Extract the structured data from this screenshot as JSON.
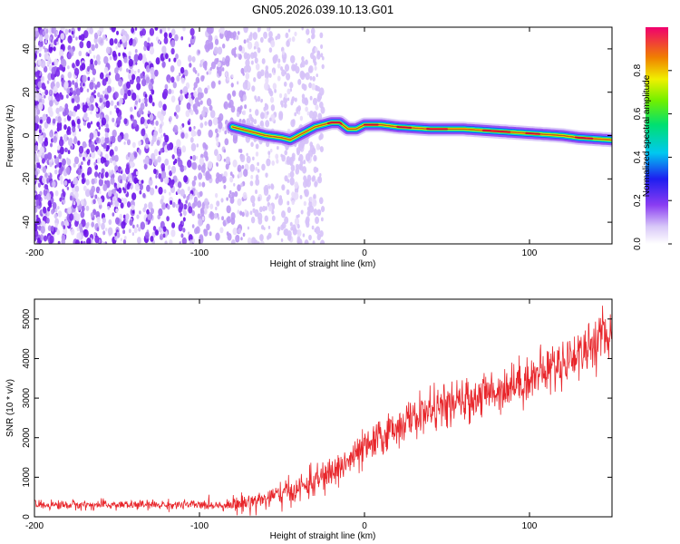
{
  "title": "GN05.2026.039.10.13.G01",
  "chart_data": [
    {
      "type": "heatmap",
      "xlabel": "Height of straight line (km)",
      "ylabel": "Frequency (Hz)",
      "xlim": [
        -200,
        150
      ],
      "ylim": [
        -50,
        50
      ],
      "xticks": [
        -200,
        -100,
        0,
        100
      ],
      "yticks": [
        -40,
        -20,
        0,
        20,
        40
      ],
      "colorbar": {
        "label": "Normalized spectral amplitude",
        "range": [
          0,
          1
        ],
        "ticks": [
          0.0,
          0.2,
          0.4,
          0.6,
          0.8
        ],
        "tick_labels": [
          "0.0",
          "0.2",
          "0.4",
          "0.6",
          "0.8"
        ]
      },
      "ridge": {
        "description_points": [
          [
            -80,
            4
          ],
          [
            -70,
            2
          ],
          [
            -60,
            0
          ],
          [
            -50,
            -1
          ],
          [
            -45,
            -2
          ],
          [
            -40,
            0
          ],
          [
            -35,
            2
          ],
          [
            -30,
            4
          ],
          [
            -20,
            6
          ],
          [
            -15,
            6
          ],
          [
            -10,
            3
          ],
          [
            -5,
            3
          ],
          [
            0,
            5
          ],
          [
            10,
            5
          ],
          [
            20,
            4
          ],
          [
            40,
            3
          ],
          [
            60,
            3
          ],
          [
            80,
            2
          ],
          [
            100,
            1
          ],
          [
            120,
            0
          ],
          [
            130,
            -1
          ],
          [
            150,
            -2
          ]
        ],
        "noise_region_x": [
          -200,
          -40
        ]
      }
    },
    {
      "type": "line",
      "xlabel": "Height of straight line (km)",
      "ylabel": "SNR (10 * v/v)",
      "xlim": [
        -200,
        150
      ],
      "ylim": [
        0,
        5500
      ],
      "xticks": [
        -200,
        -100,
        0,
        100
      ],
      "yticks": [
        0,
        1000,
        2000,
        3000,
        4000,
        5000
      ],
      "series": [
        {
          "color": "#e8262b",
          "trend": [
            [
              -200,
              300
            ],
            [
              -150,
              300
            ],
            [
              -80,
              300
            ],
            [
              -60,
              450
            ],
            [
              -40,
              700
            ],
            [
              -20,
              1100
            ],
            [
              0,
              1700
            ],
            [
              20,
              2300
            ],
            [
              40,
              2700
            ],
            [
              60,
              2900
            ],
            [
              80,
              3200
            ],
            [
              100,
              3500
            ],
            [
              120,
              3900
            ],
            [
              140,
              4400
            ],
            [
              150,
              4700
            ]
          ]
        }
      ]
    }
  ]
}
